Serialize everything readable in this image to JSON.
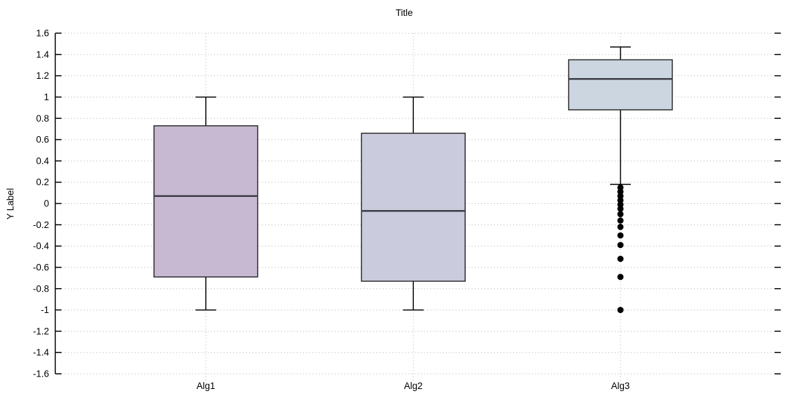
{
  "title": "Title",
  "chart_data": {
    "type": "boxplot",
    "title": "Title",
    "ylabel": "Y Label",
    "xlabel": "",
    "categories": [
      "Alg1",
      "Alg2",
      "Alg3"
    ],
    "ylim": [
      -1.6,
      1.6
    ],
    "ytick_labels": [
      "1.6",
      "1.4",
      "1.2",
      "1",
      "0.8",
      "0.6",
      "0.4",
      "0.2",
      "0",
      "-0.2",
      "-0.4",
      "-0.6",
      "-0.8",
      "-1",
      "-1.2",
      "-1.4",
      "-1.6"
    ],
    "grid": "dotted horizontal lines at every y tick and dotted vertical line at every category; tick marks on left and right edges",
    "legend": "none",
    "series": [
      {
        "name": "Alg1",
        "whisker_low": -1.0,
        "q1": -0.69,
        "median": 0.07,
        "q3": 0.73,
        "whisker_high": 1.0,
        "outliers": [],
        "fill": "#c6b9d1"
      },
      {
        "name": "Alg2",
        "whisker_low": -1.0,
        "q1": -0.73,
        "median": -0.07,
        "q3": 0.66,
        "whisker_high": 1.0,
        "outliers": [],
        "fill": "#cbcbde"
      },
      {
        "name": "Alg3",
        "whisker_low": 0.18,
        "q1": 0.88,
        "median": 1.17,
        "q3": 1.35,
        "whisker_high": 1.47,
        "outliers": [
          0.15,
          0.11,
          0.07,
          0.03,
          -0.01,
          -0.05,
          -0.1,
          -0.16,
          -0.22,
          -0.3,
          -0.39,
          -0.52,
          -0.69,
          -1.0
        ],
        "fill": "#cbd6e0"
      }
    ],
    "colors": {
      "background": "#ffffff",
      "grid_dots": "#b9b9b9",
      "axis": "#000000",
      "box_stroke": "#2b2b2b",
      "median_line": "#3c3c46",
      "outlier_dot": "#000000",
      "text": "#000000"
    }
  }
}
